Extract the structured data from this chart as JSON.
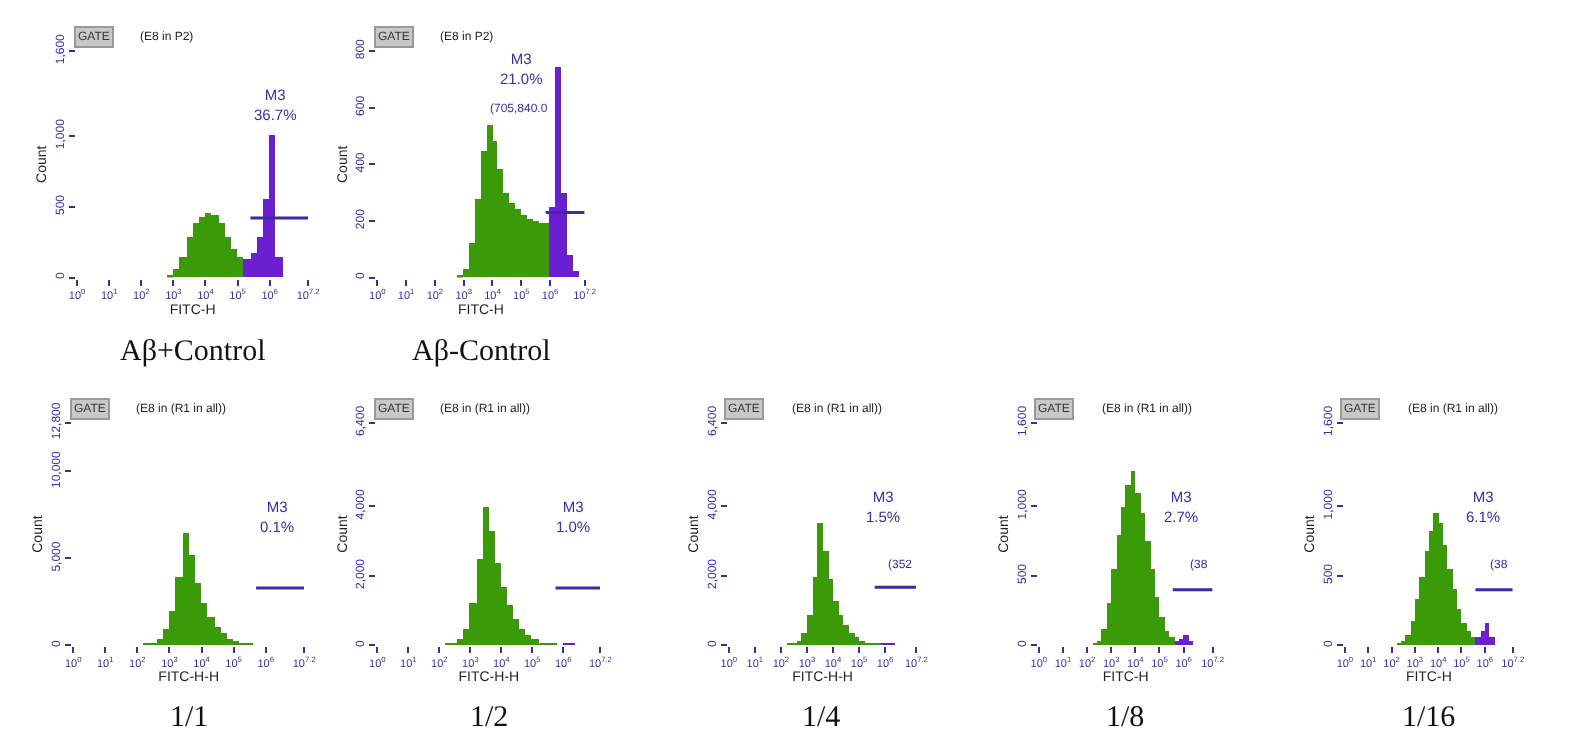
{
  "chart_data": [
    {
      "type": "histogram",
      "title": "Aβ+Control",
      "xlabel": "FITC-H",
      "ylabel": "Count",
      "log": "x",
      "xlim": [
        1,
        15848932
      ],
      "ylim": [
        0,
        1600
      ],
      "xticks": [
        {
          "value": 1,
          "label": "10$^{0}$"
        },
        {
          "value": 10,
          "label": "10$^{1}$"
        },
        {
          "value": 100,
          "label": "10$^{2}$"
        },
        {
          "value": 1000,
          "label": "10$^{3}$"
        },
        {
          "value": 10000,
          "label": "10$^{4}$"
        },
        {
          "value": 100000,
          "label": "10$^{5}$"
        },
        {
          "value": 1000000,
          "label": "10$^{6}$"
        },
        {
          "value": 15848932,
          "label": "10$^{7.2}$"
        }
      ],
      "yticks": [
        0,
        500,
        {
          "value": 1000,
          "label": "1,000"
        },
        {
          "value": 1600,
          "label": "1,600"
        }
      ],
      "grid": false,
      "series": [
        {
          "color": "#3a9a08",
          "bins": [
            631,
            1000,
            1585,
            2512,
            3981,
            6310,
            10000,
            15849,
            25119,
            39811,
            63096,
            100000,
            158489
          ],
          "values": [
            20,
            60,
            150,
            280,
            380,
            430,
            460,
            440,
            380,
            290,
            200,
            140
          ]
        },
        {
          "color": "#6a1fd0",
          "bins": [
            158489,
            251189,
            398107,
            630957,
            1000000,
            1584893,
            2511886
          ],
          "values": [
            130,
            170,
            280,
            550,
            1000,
            150
          ]
        },
        {
          "type": "line",
          "color": "#3b2ca0",
          "x": [
            251189,
            15848932
          ],
          "values": [
            420,
            420
          ]
        }
      ],
      "annotations": [
        "GATE",
        "(E8 in P2)",
        "M3\n36.7%"
      ]
    },
    {
      "type": "histogram",
      "title": "Aβ-Control",
      "xlabel": "FITC-H",
      "ylabel": "Count",
      "log": "x",
      "xlim": [
        1,
        15848932
      ],
      "ylim": [
        0,
        800
      ],
      "xticks": [
        {
          "value": 1,
          "label": "10$^{0}$"
        },
        {
          "value": 10,
          "label": "10$^{1}$"
        },
        {
          "value": 100,
          "label": "10$^{2}$"
        },
        {
          "value": 1000,
          "label": "10$^{3}$"
        },
        {
          "value": 10000,
          "label": "10$^{4}$"
        },
        {
          "value": 100000,
          "label": "10$^{5}$"
        },
        {
          "value": 1000000,
          "label": "10$^{6}$"
        },
        {
          "value": 15848932,
          "label": "10$^{7.2}$"
        }
      ],
      "yticks": [
        0,
        200,
        400,
        600,
        800
      ],
      "grid": false,
      "series": [
        {
          "color": "#3a9a08",
          "bins": [
            631,
            1000,
            1585,
            2512,
            3981,
            6310,
            10000,
            15849,
            25119,
            39811,
            63096,
            100000,
            158489,
            251189,
            398107,
            630957,
            1000000
          ],
          "values": [
            10,
            30,
            120,
            280,
            450,
            540,
            480,
            380,
            300,
            260,
            240,
            220,
            210,
            200,
            190,
            190
          ]
        },
        {
          "color": "#6a1fd0",
          "bins": [
            1000000,
            1584893,
            2511886,
            3981072,
            6309573,
            10000000
          ],
          "values": [
            250,
            740,
            300,
            80,
            20
          ]
        },
        {
          "type": "line",
          "color": "#3b2ca0",
          "x": [
            707946,
            15848932
          ],
          "values": [
            230,
            230
          ]
        }
      ],
      "annotations": [
        "GATE",
        "(E8 in P2)",
        "M3\n21.0%",
        "(705,840.0"
      ]
    },
    {
      "type": "histogram",
      "title": "1/1",
      "xlabel": "FITC-H-H",
      "ylabel": "Count",
      "log": "x",
      "xlim": [
        1,
        15848932
      ],
      "ylim": [
        0,
        12800
      ],
      "xticks": [
        {
          "value": 1,
          "label": "10$^{0}$"
        },
        {
          "value": 10,
          "label": "10$^{1}$"
        },
        {
          "value": 100,
          "label": "10$^{2}$"
        },
        {
          "value": 1000,
          "label": "10$^{3}$"
        },
        {
          "value": 10000,
          "label": "10$^{4}$"
        },
        {
          "value": 100000,
          "label": "10$^{5}$"
        },
        {
          "value": 1000000,
          "label": "10$^{6}$"
        },
        {
          "value": 15848932,
          "label": "10$^{7.2}$"
        }
      ],
      "yticks": [
        0,
        {
          "value": 5000,
          "label": "5,000"
        },
        {
          "value": 10000,
          "label": "10,000"
        },
        {
          "value": 12800,
          "label": "12,800"
        }
      ],
      "grid": false,
      "series": [
        {
          "color": "#3a9a08",
          "bins": [
            158,
            251,
            398,
            631,
            1000,
            1585,
            2512,
            3981,
            6310,
            10000,
            15849,
            25119,
            39811,
            63096,
            100000,
            158489,
            251189,
            398107
          ],
          "values": [
            100,
            200,
            400,
            900,
            2000,
            4000,
            6500,
            5200,
            3600,
            2500,
            1700,
            1100,
            700,
            400,
            300,
            200,
            100
          ]
        },
        {
          "type": "line",
          "color": "#3b2ca0",
          "x": [
            501187,
            15848932
          ],
          "values": [
            3300,
            3300
          ]
        }
      ],
      "annotations": [
        "GATE",
        "(E8 in (R1 in all))",
        "M3\n0.1%"
      ]
    },
    {
      "type": "histogram",
      "title": "1/2",
      "xlabel": "FITC-H-H",
      "ylabel": "Count",
      "log": "x",
      "xlim": [
        1,
        15848932
      ],
      "ylim": [
        0,
        6400
      ],
      "xticks": [
        {
          "value": 1,
          "label": "10$^{0}$"
        },
        {
          "value": 10,
          "label": "10$^{1}$"
        },
        {
          "value": 100,
          "label": "10$^{2}$"
        },
        {
          "value": 1000,
          "label": "10$^{3}$"
        },
        {
          "value": 10000,
          "label": "10$^{4}$"
        },
        {
          "value": 100000,
          "label": "10$^{5}$"
        },
        {
          "value": 1000000,
          "label": "10$^{6}$"
        },
        {
          "value": 15848932,
          "label": "10$^{7.2}$"
        }
      ],
      "yticks": [
        0,
        {
          "value": 2000,
          "label": "2,000"
        },
        {
          "value": 4000,
          "label": "4,000"
        },
        {
          "value": 6400,
          "label": "6,400"
        }
      ],
      "grid": false,
      "series": [
        {
          "color": "#3a9a08",
          "bins": [
            158,
            251,
            398,
            631,
            1000,
            1585,
            2512,
            3981,
            6310,
            10000,
            15849,
            25119,
            39811,
            63096,
            100000,
            158489,
            251189,
            398107,
            630957
          ],
          "values": [
            30,
            80,
            200,
            500,
            1200,
            2500,
            4000,
            3300,
            2400,
            1700,
            1150,
            750,
            450,
            280,
            170,
            100,
            60,
            40
          ]
        },
        {
          "color": "#6a1fd0",
          "bins": [
            1000000,
            1584893,
            2511886
          ],
          "values": [
            40,
            30
          ]
        },
        {
          "type": "line",
          "color": "#3b2ca0",
          "x": [
            562341,
            15848932
          ],
          "values": [
            1650,
            1650
          ]
        }
      ],
      "annotations": [
        "GATE",
        "(E8 in (R1 in all))",
        "M3\n1.0%"
      ]
    },
    {
      "type": "histogram",
      "title": "1/4",
      "xlabel": "FITC-H-H",
      "ylabel": "Count",
      "log": "x",
      "xlim": [
        1,
        15848932
      ],
      "ylim": [
        0,
        6400
      ],
      "xticks": [
        {
          "value": 1,
          "label": "10$^{0}$"
        },
        {
          "value": 10,
          "label": "10$^{1}$"
        },
        {
          "value": 100,
          "label": "10$^{2}$"
        },
        {
          "value": 1000,
          "label": "10$^{3}$"
        },
        {
          "value": 10000,
          "label": "10$^{4}$"
        },
        {
          "value": 100000,
          "label": "10$^{5}$"
        },
        {
          "value": 1000000,
          "label": "10$^{6}$"
        },
        {
          "value": 15848932,
          "label": "10$^{7.2}$"
        }
      ],
      "yticks": [
        0,
        {
          "value": 2000,
          "label": "2,000"
        },
        {
          "value": 4000,
          "label": "4,000"
        },
        {
          "value": 6400,
          "label": "6,400"
        }
      ],
      "grid": false,
      "series": [
        {
          "color": "#3a9a08",
          "bins": [
            158,
            251,
            398,
            631,
            1000,
            1585,
            2512,
            3981,
            6310,
            10000,
            15849,
            25119,
            39811,
            63096,
            100000,
            158489,
            251189,
            398107,
            630957
          ],
          "values": [
            20,
            60,
            150,
            350,
            900,
            2000,
            3500,
            2700,
            1900,
            1300,
            900,
            600,
            380,
            240,
            150,
            90,
            50,
            30
          ]
        },
        {
          "color": "#6a1fd0",
          "bins": [
            630957,
            1000000,
            1584893,
            2511886
          ],
          "values": [
            30,
            80,
            40
          ]
        },
        {
          "type": "line",
          "color": "#3b2ca0",
          "x": [
            398107,
            15848932
          ],
          "values": [
            1670,
            1670
          ]
        }
      ],
      "annotations": [
        "GATE",
        "(E8 in (R1 in all))",
        "M3\n1.5%",
        "(352"
      ]
    },
    {
      "type": "histogram",
      "title": "1/8",
      "xlabel": "FITC-H",
      "ylabel": "Count",
      "log": "x",
      "xlim": [
        1,
        15848932
      ],
      "ylim": [
        0,
        1600
      ],
      "xticks": [
        {
          "value": 1,
          "label": "10$^{0}$"
        },
        {
          "value": 10,
          "label": "10$^{1}$"
        },
        {
          "value": 100,
          "label": "10$^{2}$"
        },
        {
          "value": 1000,
          "label": "10$^{3}$"
        },
        {
          "value": 10000,
          "label": "10$^{4}$"
        },
        {
          "value": 100000,
          "label": "10$^{5}$"
        },
        {
          "value": 1000000,
          "label": "10$^{6}$"
        },
        {
          "value": 15848932,
          "label": "10$^{7.2}$"
        }
      ],
      "yticks": [
        0,
        500,
        {
          "value": 1000,
          "label": "1,000"
        },
        {
          "value": 1600,
          "label": "1,600"
        }
      ],
      "grid": false,
      "series": [
        {
          "color": "#3a9a08",
          "bins": [
            158,
            251,
            398,
            631,
            1000,
            1585,
            2512,
            3981,
            6310,
            10000,
            15849,
            25119,
            39811,
            63096,
            100000,
            158489,
            251189,
            398107
          ],
          "values": [
            10,
            40,
            120,
            300,
            550,
            800,
            1000,
            1150,
            1250,
            1100,
            950,
            750,
            550,
            350,
            200,
            110,
            60
          ]
        },
        {
          "color": "#6a1fd0",
          "bins": [
            398107,
            630957,
            1000000,
            1584893,
            2511886
          ],
          "values": [
            30,
            50,
            80,
            40
          ]
        },
        {
          "type": "line",
          "color": "#3b2ca0",
          "x": [
            354813,
            15848932
          ],
          "values": [
            400,
            400
          ]
        }
      ],
      "annotations": [
        "GATE",
        "(E8 in (R1 in all))",
        "M3\n2.7%",
        "(38"
      ]
    },
    {
      "type": "histogram",
      "title": "1/16",
      "xlabel": "FITC-H",
      "ylabel": "Count",
      "log": "x",
      "xlim": [
        1,
        15848932
      ],
      "ylim": [
        0,
        1600
      ],
      "xticks": [
        {
          "value": 1,
          "label": "10$^{0}$"
        },
        {
          "value": 10,
          "label": "10$^{1}$"
        },
        {
          "value": 100,
          "label": "10$^{2}$"
        },
        {
          "value": 1000,
          "label": "10$^{3}$"
        },
        {
          "value": 10000,
          "label": "10$^{4}$"
        },
        {
          "value": 100000,
          "label": "10$^{5}$"
        },
        {
          "value": 1000000,
          "label": "10$^{6}$"
        },
        {
          "value": 15848932,
          "label": "10$^{7.2}$"
        }
      ],
      "yticks": [
        0,
        500,
        {
          "value": 1000,
          "label": "1,000"
        },
        {
          "value": 1600,
          "label": "1,600"
        }
      ],
      "grid": false,
      "series": [
        {
          "color": "#3a9a08",
          "bins": [
            158,
            251,
            398,
            631,
            1000,
            1585,
            2512,
            3981,
            6310,
            10000,
            15849,
            25119,
            39811,
            63096,
            100000,
            158489,
            251189,
            398107
          ],
          "values": [
            10,
            30,
            80,
            180,
            330,
            500,
            680,
            830,
            950,
            880,
            720,
            550,
            400,
            260,
            160,
            100,
            60
          ]
        },
        {
          "color": "#6a1fd0",
          "bins": [
            398107,
            630957,
            1000000,
            1584893,
            2511886
          ],
          "values": [
            60,
            100,
            160,
            60
          ]
        },
        {
          "type": "line",
          "color": "#3b2ca0",
          "x": [
            398107,
            15848932
          ],
          "values": [
            400,
            400
          ]
        }
      ],
      "annotations": [
        "GATE",
        "(E8 in (R1 in all))",
        "M3\n6.1%",
        "(38"
      ]
    }
  ]
}
